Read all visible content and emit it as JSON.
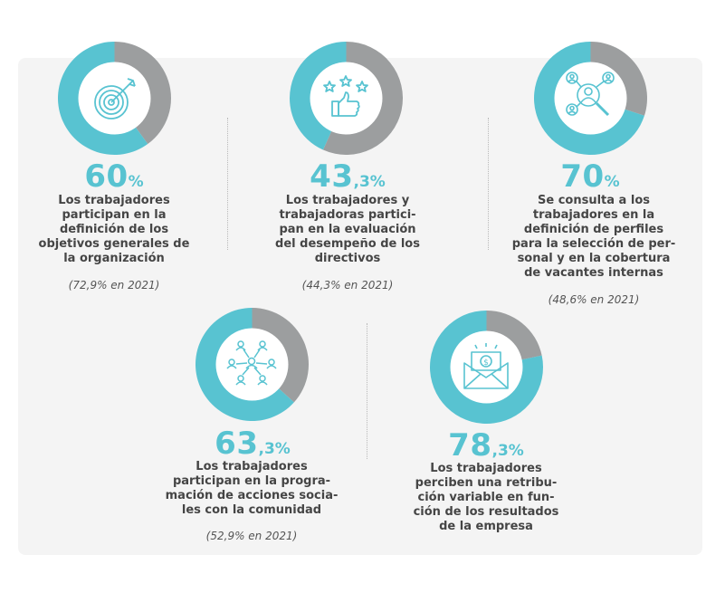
{
  "colors": {
    "accent": "#58c3d1",
    "secondary": "#9c9e9f",
    "text": "#454545",
    "panel": "#f4f4f4"
  },
  "chart_data": [
    {
      "type": "pie",
      "value_pct": 60.0,
      "big_number": "60",
      "big_suffix": "%",
      "label_lines": [
        "Los trabajadores",
        "participan en la",
        "definición de los",
        "objetivos generales de",
        "la organización"
      ],
      "previous": "(72,9% en 2021)",
      "icon": "target-icon"
    },
    {
      "type": "pie",
      "value_pct": 43.3,
      "big_number": "43",
      "big_suffix": ",3%",
      "label_lines": [
        "Los trabajadores y",
        "trabajadoras partici-",
        "pan en la evaluación",
        "del desempeño de los",
        "directivos"
      ],
      "previous": "(44,3% en 2021)",
      "icon": "thumbs-up-stars-icon"
    },
    {
      "type": "pie",
      "value_pct": 70.0,
      "big_number": "70",
      "big_suffix": "%",
      "label_lines": [
        "Se consulta a los",
        "trabajadores en la",
        "definición de perfiles",
        "para la selección de per-",
        "sonal y en la cobertura",
        "de vacantes internas"
      ],
      "previous": "(48,6% en 2021)",
      "icon": "profile-search-icon"
    },
    {
      "type": "pie",
      "value_pct": 63.3,
      "big_number": "63",
      "big_suffix": ",3%",
      "label_lines": [
        "Los trabajadores",
        "participan en la progra-",
        "mación de acciones socia-",
        "les con la comunidad"
      ],
      "previous": "(52,9% en 2021)",
      "icon": "network-people-icon"
    },
    {
      "type": "pie",
      "value_pct": 78.3,
      "big_number": "78",
      "big_suffix": ",3%",
      "label_lines": [
        "Los trabajadores",
        "perciben una retribu-",
        "ción variable en fun-",
        "ción de los resultados",
        "de la empresa"
      ],
      "previous": "",
      "icon": "money-envelope-icon"
    }
  ]
}
